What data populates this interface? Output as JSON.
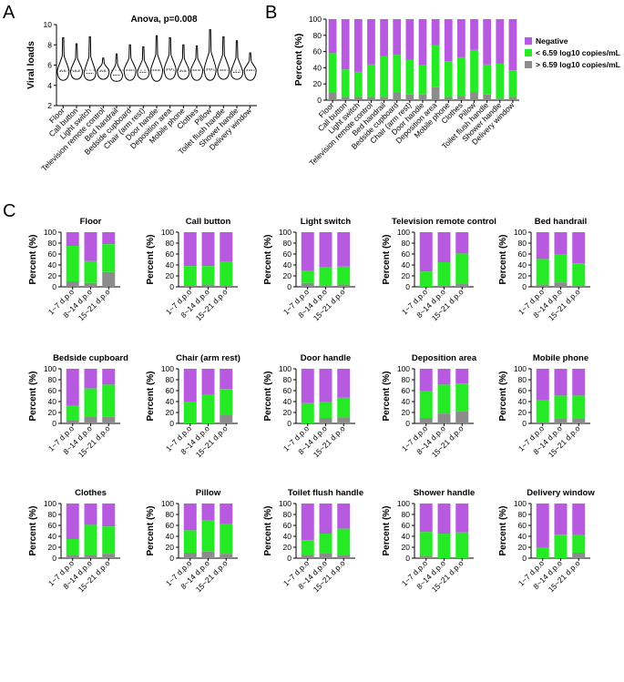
{
  "panel_labels": {
    "a": "A",
    "b": "B",
    "c": "C"
  },
  "colors": {
    "negative": "#b75ae0",
    "low": "#27ea27",
    "high": "#8c8c8c",
    "axis": "#000000"
  },
  "chart_data": [
    {
      "id": "A",
      "type": "violin",
      "title": "Anova, p=0.008",
      "ylabel": "Viral loads",
      "ylim": [
        2,
        10
      ],
      "yticks": [
        2,
        4,
        6,
        8,
        10
      ],
      "reference_line": 5.5,
      "categories": [
        "Floor",
        "Call button",
        "Light switch",
        "Television remote control",
        "Bed handrail",
        "Bedside cupboard",
        "Chair (arm rest)",
        "Door handle",
        "Deposition area",
        "Mobile phone",
        "Clothes",
        "Pillow",
        "Toilet flush handle",
        "Shower handle",
        "Delivery window"
      ],
      "min": [
        4.5,
        4.6,
        4.5,
        4.6,
        4.4,
        4.5,
        4.6,
        4.4,
        4.6,
        4.6,
        4.5,
        4.5,
        4.6,
        4.6,
        4.5
      ],
      "median": [
        5.4,
        5.4,
        5.2,
        5.4,
        5.0,
        5.5,
        5.3,
        5.5,
        5.6,
        5.4,
        5.5,
        5.6,
        5.5,
        5.3,
        5.5
      ],
      "max": [
        8.7,
        8.1,
        8.8,
        6.7,
        7.1,
        8.0,
        7.8,
        8.9,
        8.7,
        8.0,
        7.9,
        9.5,
        8.8,
        8.4,
        7.2
      ]
    },
    {
      "id": "B",
      "type": "stacked_bar",
      "ylabel": "Percent (%)",
      "ylim": [
        0,
        100
      ],
      "yticks": [
        0,
        20,
        40,
        60,
        80,
        100
      ],
      "categories": [
        "Floor",
        "Call button",
        "Light switch",
        "Television remote control",
        "Bed handrail",
        "Bedside cupboard",
        "Chair (arm rest)",
        "Door handle",
        "Deposition area",
        "Mobile phone",
        "Clothes",
        "Pillow",
        "Toilet flush handle",
        "Shower handle",
        "Delivery window"
      ],
      "legend": [
        "Negative",
        "< 6.59 log10 copies/mL",
        "> 6.59 log10 copies/mL"
      ],
      "series": [
        {
          "name": "> 6.59 log10 copies/mL",
          "values": [
            10,
            4,
            4,
            4,
            4,
            10,
            7,
            7,
            16,
            4,
            5,
            10,
            7,
            2,
            4
          ]
        },
        {
          "name": "< 6.59 log10 copies/mL",
          "values": [
            48,
            34,
            31,
            40,
            50,
            46,
            43,
            36,
            52,
            44,
            48,
            52,
            37,
            43,
            33
          ]
        },
        {
          "name": "Negative",
          "values": [
            42,
            62,
            65,
            56,
            46,
            44,
            50,
            57,
            32,
            52,
            47,
            38,
            56,
            55,
            63
          ]
        }
      ]
    },
    {
      "id": "C",
      "type": "stacked_bar_grid",
      "ylabel": "Percent (%)",
      "ylim": [
        0,
        100
      ],
      "yticks": [
        0,
        20,
        40,
        60,
        80,
        100
      ],
      "categories": [
        "1~7 d.p.o",
        "8~14 d.p.o",
        "15~21 d.p.o"
      ],
      "panels": [
        {
          "title": "Floor",
          "high": [
            10,
            7,
            27
          ],
          "total": [
            75,
            47,
            78
          ]
        },
        {
          "title": "Call button",
          "high": [
            3,
            4,
            3
          ],
          "total": [
            38,
            38,
            46
          ]
        },
        {
          "title": "Light switch",
          "high": [
            7,
            3,
            4
          ],
          "total": [
            30,
            36,
            37
          ]
        },
        {
          "title": "Television remote control",
          "high": [
            0,
            3,
            6
          ],
          "total": [
            28,
            45,
            61
          ]
        },
        {
          "title": "Bed handrail",
          "high": [
            4,
            8,
            3
          ],
          "total": [
            51,
            59,
            43
          ]
        },
        {
          "title": "Bedside cupboard",
          "high": [
            6,
            13,
            12
          ],
          "total": [
            32,
            64,
            71
          ]
        },
        {
          "title": "Chair (arm rest)",
          "high": [
            0,
            0,
            15
          ],
          "total": [
            40,
            52,
            63
          ]
        },
        {
          "title": "Door handle",
          "high": [
            0,
            10,
            11
          ],
          "total": [
            37,
            40,
            47
          ]
        },
        {
          "title": "Deposition area",
          "high": [
            10,
            18,
            22
          ],
          "total": [
            60,
            71,
            73
          ]
        },
        {
          "title": "Mobile phone",
          "high": [
            3,
            9,
            9
          ],
          "total": [
            42,
            51,
            51
          ]
        },
        {
          "title": "Clothes",
          "high": [
            5,
            5,
            8
          ],
          "total": [
            35,
            61,
            58
          ]
        },
        {
          "title": "Pillow",
          "high": [
            10,
            12,
            8
          ],
          "total": [
            51,
            70,
            62
          ]
        },
        {
          "title": "Toilet flush handle",
          "high": [
            5,
            9,
            5
          ],
          "total": [
            33,
            45,
            54
          ]
        },
        {
          "title": "Shower handle",
          "high": [
            4,
            0,
            0
          ],
          "total": [
            48,
            45,
            47
          ]
        },
        {
          "title": "Delivery window",
          "high": [
            0,
            0,
            10
          ],
          "total": [
            19,
            43,
            42
          ]
        }
      ]
    }
  ]
}
